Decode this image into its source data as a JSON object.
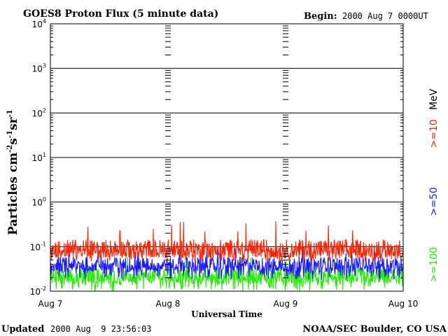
{
  "title": "GOES8 Proton Flux (5 minute data)",
  "begin": {
    "label": "Begin:",
    "value": "2000 Aug 7 0000UT"
  },
  "footer": {
    "updated_label": "Updated",
    "updated_value": "2000 Aug  9 23:56:03",
    "source": "NOAA/SEC Boulder, CO USA"
  },
  "colors": {
    "ge10": "#ff2000",
    "ge50": "#1a1aff",
    "ge100": "#22ee00",
    "axes": "#000000"
  },
  "chart_data": {
    "type": "line",
    "title": "GOES8 Proton Flux (5 minute data)",
    "xlabel": "Universal Time",
    "ylabel": {
      "base": "Particles cm",
      "e1": "-2",
      "m1": "s",
      "e2": "-1",
      "m2": "sr",
      "e3": "-1"
    },
    "y_scale": "log",
    "ylim": [
      0.01,
      10000
    ],
    "y_ticks": [
      {
        "base": "10",
        "exp": "-2",
        "value": 0.01
      },
      {
        "base": "10",
        "exp": "-1",
        "value": 0.1
      },
      {
        "base": "10",
        "exp": "0",
        "value": 1
      },
      {
        "base": "10",
        "exp": "1",
        "value": 10
      },
      {
        "base": "10",
        "exp": "2",
        "value": 100
      },
      {
        "base": "10",
        "exp": "3",
        "value": 1000
      },
      {
        "base": "10",
        "exp": "4",
        "value": 10000
      }
    ],
    "x_ticks": [
      "Aug 7",
      "Aug 8",
      "Aug 9",
      "Aug 10"
    ],
    "xlim": [
      "2000-08-07T00:00",
      "2000-08-10T00:00"
    ],
    "grid": "horizontal at each decade",
    "legend": {
      "placement": "right",
      "unit": "MeV"
    },
    "series": [
      {
        "name": ">=10",
        "color": "#ff2000",
        "typical": 0.09,
        "low": 0.045,
        "high": 0.38,
        "label": ">=10"
      },
      {
        "name": ">=50",
        "color": "#1a1aff",
        "typical": 0.04,
        "low": 0.018,
        "high": 0.1,
        "label": ">=50"
      },
      {
        "name": ">=100",
        "color": "#22ee00",
        "typical": 0.022,
        "low": 0.01,
        "high": 0.06,
        "label": ">=100"
      }
    ]
  }
}
